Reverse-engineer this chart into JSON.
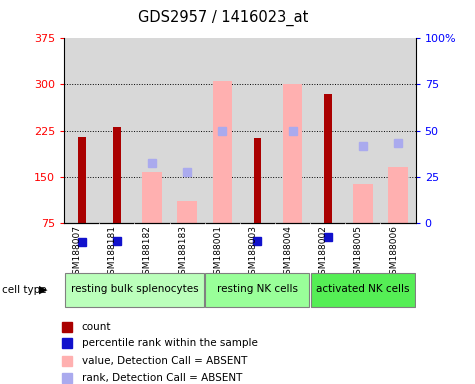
{
  "title": "GDS2957 / 1416023_at",
  "samples": [
    "GSM188007",
    "GSM188181",
    "GSM188182",
    "GSM188183",
    "GSM188001",
    "GSM188003",
    "GSM188004",
    "GSM188002",
    "GSM188005",
    "GSM188006"
  ],
  "cell_types": [
    {
      "label": "resting bulk splenocytes",
      "start": 0,
      "end": 3,
      "color": "#bbffbb"
    },
    {
      "label": "resting NK cells",
      "start": 4,
      "end": 6,
      "color": "#99ff99"
    },
    {
      "label": "activated NK cells",
      "start": 7,
      "end": 9,
      "color": "#55ee55"
    }
  ],
  "ylim_left": [
    75,
    375
  ],
  "ylim_right": [
    0,
    100
  ],
  "yticks_left": [
    75,
    150,
    225,
    300,
    375
  ],
  "yticks_right": [
    0,
    25,
    50,
    75,
    100
  ],
  "ytick_labels_right": [
    "0",
    "25",
    "50",
    "75",
    "100%"
  ],
  "count_values": [
    215,
    230,
    null,
    null,
    null,
    213,
    null,
    285,
    null,
    null
  ],
  "percentile_values": [
    43,
    45,
    null,
    null,
    null,
    45,
    null,
    52,
    null,
    null
  ],
  "absent_value_bars": [
    null,
    null,
    158,
    110,
    305,
    null,
    300,
    null,
    138,
    165
  ],
  "absent_rank_dots": [
    null,
    null,
    172,
    157,
    225,
    null,
    225,
    null,
    200,
    205
  ],
  "red_color": "#aa0000",
  "blue_color": "#1111cc",
  "pink_color": "#ffb0b0",
  "lightblue_color": "#aaaaee",
  "axis_bg": "#d8d8d8",
  "legend_items": [
    {
      "color": "#aa0000",
      "label": "count"
    },
    {
      "color": "#1111cc",
      "label": "percentile rank within the sample"
    },
    {
      "color": "#ffb0b0",
      "label": "value, Detection Call = ABSENT"
    },
    {
      "color": "#aaaaee",
      "label": "rank, Detection Call = ABSENT"
    }
  ]
}
